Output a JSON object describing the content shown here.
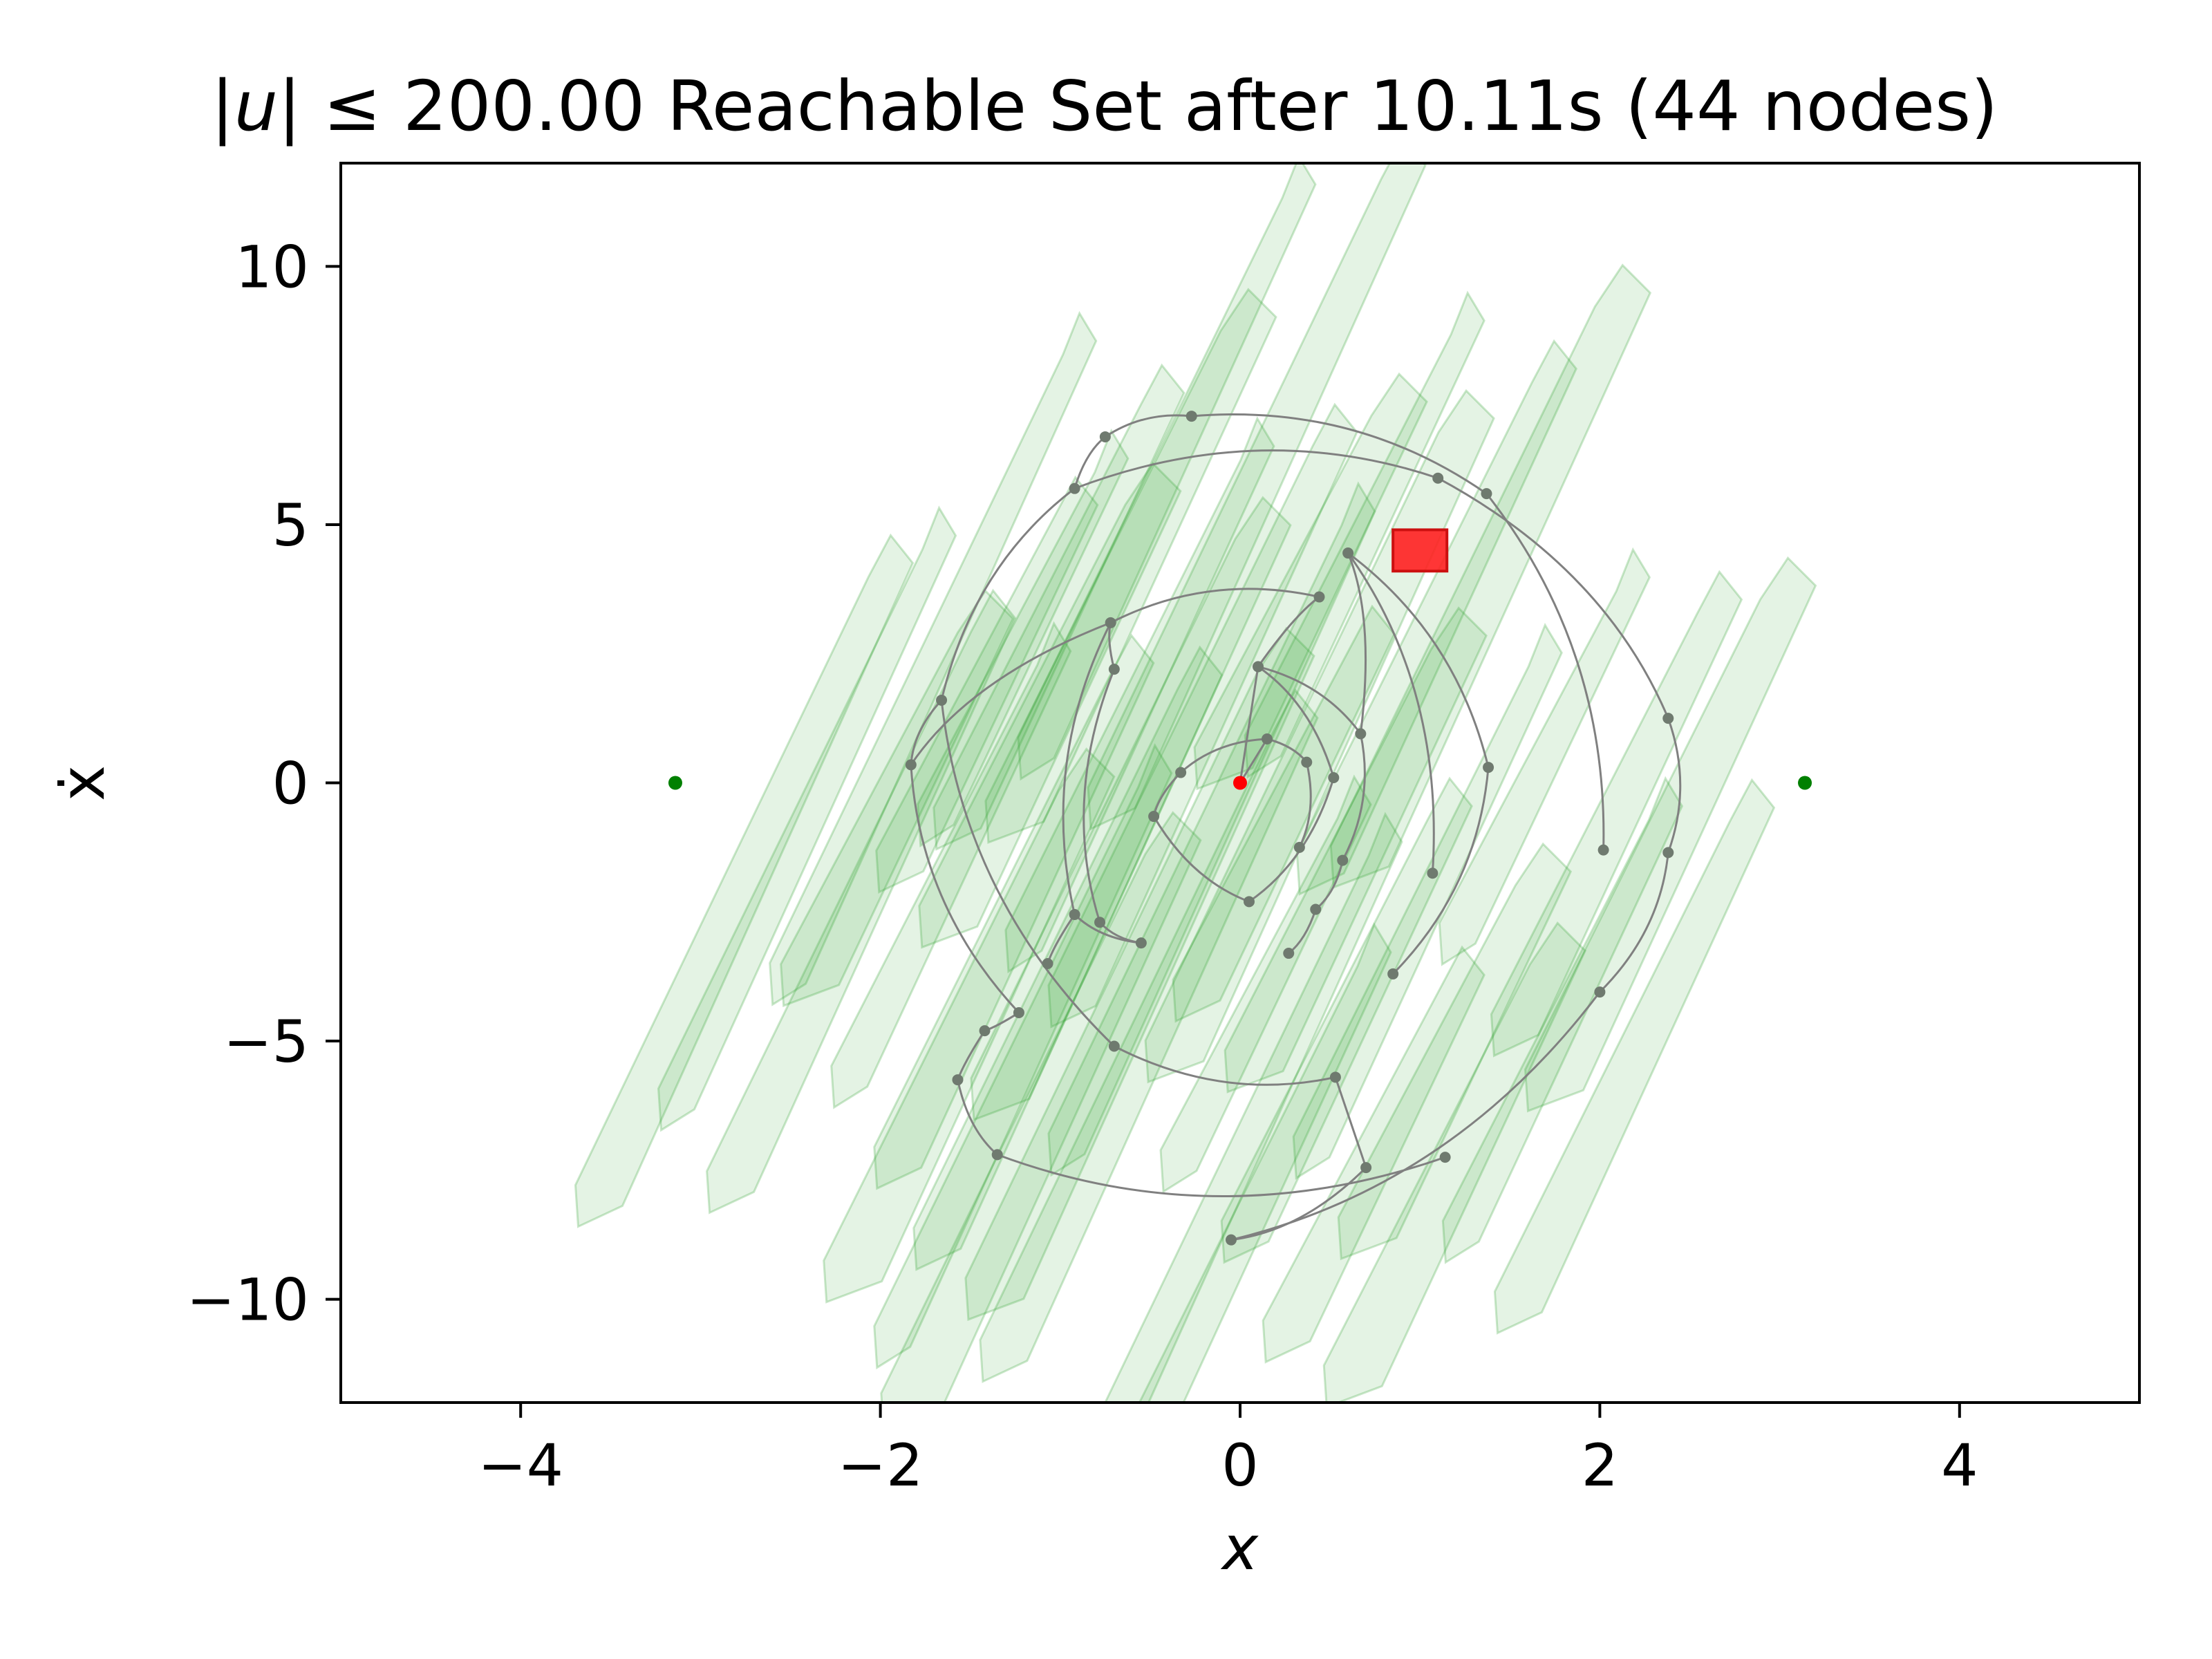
{
  "chart_data": {
    "type": "scatter",
    "title": "|u| ≤ 200.00 Reachable Set after 10.11s (44 nodes)",
    "title_parts": {
      "bar_left": "|",
      "u": "u",
      "bar_right": "|",
      "rest": " ≤ 200.00 Reachable Set after 10.11s (44 nodes)"
    },
    "xlabel": "x",
    "ylabel": "ẋ",
    "xlim": [
      -5,
      5
    ],
    "ylim": [
      -12,
      12
    ],
    "x_ticks": [
      -4,
      -2,
      0,
      2,
      4
    ],
    "x_tick_labels": [
      "−4",
      "−2",
      "0",
      "2",
      "4"
    ],
    "y_ticks": [
      -10,
      -5,
      0,
      5,
      10
    ],
    "y_tick_labels": [
      "−10",
      "−5",
      "0",
      "5",
      "10"
    ],
    "grid": false,
    "colors": {
      "trajectory": "#808080",
      "node": "#6f7a6f",
      "reachable_fill": "#2ca02c",
      "start": "#ff0000",
      "goal_points": "#008000",
      "goal_region": "#ff2020"
    },
    "start_point": {
      "x": 0.0,
      "y": 0.0
    },
    "goal_points": [
      {
        "x": -3.14,
        "y": 0.0
      },
      {
        "x": 3.14,
        "y": 0.0
      }
    ],
    "goal_region": {
      "x": [
        0.85,
        1.15
      ],
      "y": [
        4.1,
        4.9
      ]
    },
    "nodes": [
      {
        "x": 0.0,
        "y": 0.0
      },
      {
        "x": 0.15,
        "y": 0.85
      },
      {
        "x": 0.37,
        "y": 0.4
      },
      {
        "x": 0.33,
        "y": -1.25
      },
      {
        "x": -0.33,
        "y": 0.2
      },
      {
        "x": -0.48,
        "y": -0.65
      },
      {
        "x": 0.05,
        "y": -2.3
      },
      {
        "x": 0.1,
        "y": 2.25
      },
      {
        "x": 0.67,
        "y": 0.95
      },
      {
        "x": 0.57,
        "y": -1.5
      },
      {
        "x": 0.52,
        "y": 0.1
      },
      {
        "x": 0.44,
        "y": 3.6
      },
      {
        "x": -0.72,
        "y": 3.1
      },
      {
        "x": -0.7,
        "y": 2.2
      },
      {
        "x": 0.6,
        "y": 4.45
      },
      {
        "x": 1.07,
        "y": -1.75
      },
      {
        "x": 0.42,
        "y": -2.45
      },
      {
        "x": 0.27,
        "y": -3.3
      },
      {
        "x": -0.78,
        "y": -2.7
      },
      {
        "x": -0.55,
        "y": -3.1
      },
      {
        "x": -0.92,
        "y": -2.55
      },
      {
        "x": 1.38,
        "y": 0.3
      },
      {
        "x": 0.85,
        "y": -3.7
      },
      {
        "x": -1.07,
        "y": -3.5
      },
      {
        "x": -1.83,
        "y": 0.35
      },
      {
        "x": -1.66,
        "y": 1.6
      },
      {
        "x": -0.92,
        "y": 5.7
      },
      {
        "x": -0.75,
        "y": 6.7
      },
      {
        "x": -0.27,
        "y": 7.1
      },
      {
        "x": 1.1,
        "y": 5.9
      },
      {
        "x": 1.37,
        "y": 5.6
      },
      {
        "x": 2.38,
        "y": 1.25
      },
      {
        "x": 2.02,
        "y": -1.3
      },
      {
        "x": 2.38,
        "y": -1.35
      },
      {
        "x": -1.23,
        "y": -4.45
      },
      {
        "x": -1.42,
        "y": -4.8
      },
      {
        "x": -0.7,
        "y": -5.1
      },
      {
        "x": 0.53,
        "y": -5.7
      },
      {
        "x": 2.0,
        "y": -4.05
      },
      {
        "x": -1.57,
        "y": -5.75
      },
      {
        "x": -1.35,
        "y": -7.2
      },
      {
        "x": 0.7,
        "y": -7.45
      },
      {
        "x": 1.14,
        "y": -7.25
      },
      {
        "x": -0.05,
        "y": -8.85
      }
    ],
    "edges": [
      [
        0,
        1
      ],
      [
        1,
        2
      ],
      [
        2,
        3
      ],
      [
        1,
        4
      ],
      [
        4,
        5
      ],
      [
        5,
        6
      ],
      [
        0,
        7
      ],
      [
        7,
        8
      ],
      [
        8,
        9
      ],
      [
        7,
        10
      ],
      [
        10,
        6
      ],
      [
        7,
        11
      ],
      [
        11,
        12
      ],
      [
        12,
        13
      ],
      [
        8,
        14
      ],
      [
        14,
        15
      ],
      [
        9,
        16
      ],
      [
        16,
        17
      ],
      [
        13,
        18
      ],
      [
        18,
        19
      ],
      [
        12,
        20
      ],
      [
        20,
        19
      ],
      [
        14,
        21
      ],
      [
        21,
        22
      ],
      [
        20,
        23
      ],
      [
        12,
        24
      ],
      [
        24,
        25
      ],
      [
        25,
        26
      ],
      [
        26,
        27
      ],
      [
        27,
        28
      ],
      [
        26,
        29
      ],
      [
        28,
        30
      ],
      [
        29,
        31
      ],
      [
        30,
        32
      ],
      [
        31,
        33
      ],
      [
        24,
        34
      ],
      [
        34,
        35
      ],
      [
        25,
        36
      ],
      [
        36,
        37
      ],
      [
        33,
        38
      ],
      [
        35,
        39
      ],
      [
        39,
        40
      ],
      [
        37,
        41
      ],
      [
        40,
        42
      ],
      [
        38,
        43
      ],
      [
        41,
        43
      ]
    ],
    "reachable_sets": [
      {
        "x": -1.2,
        "y": 2.8
      },
      {
        "x": -1.0,
        "y": 3.4
      },
      {
        "x": -0.6,
        "y": 4.2
      },
      {
        "x": -0.4,
        "y": 6.1
      },
      {
        "x": 0.1,
        "y": 5.8
      },
      {
        "x": 0.4,
        "y": 3.9
      },
      {
        "x": 0.7,
        "y": 4.8
      },
      {
        "x": 1.1,
        "y": 3.2
      },
      {
        "x": 1.4,
        "y": 4.0
      },
      {
        "x": -1.7,
        "y": 2.4
      },
      {
        "x": -1.4,
        "y": 1.9
      },
      {
        "x": -1.05,
        "y": 1.5
      },
      {
        "x": -0.55,
        "y": 1.7
      },
      {
        "x": -0.2,
        "y": 1.3
      },
      {
        "x": 0.45,
        "y": 0.9
      },
      {
        "x": 1.7,
        "y": 0.5
      },
      {
        "x": 2.1,
        "y": -0.6
      },
      {
        "x": 2.4,
        "y": -1.0
      },
      {
        "x": -2.4,
        "y": -0.7
      },
      {
        "x": -2.75,
        "y": -1.9
      },
      {
        "x": -1.9,
        "y": -0.3
      },
      {
        "x": -1.6,
        "y": -1.6
      },
      {
        "x": -1.25,
        "y": -2.5
      },
      {
        "x": -0.6,
        "y": -0.5
      },
      {
        "x": -0.15,
        "y": -0.9
      },
      {
        "x": 0.25,
        "y": -0.6
      },
      {
        "x": 0.65,
        "y": -1.3
      },
      {
        "x": 1.05,
        "y": -2.3
      },
      {
        "x": -0.95,
        "y": -3.4
      },
      {
        "x": -0.55,
        "y": -3.7
      },
      {
        "x": 0.15,
        "y": -3.9
      },
      {
        "x": 0.6,
        "y": -4.6
      },
      {
        "x": -1.5,
        "y": -4.7
      },
      {
        "x": -1.2,
        "y": -5.3
      },
      {
        "x": -0.5,
        "y": -4.9
      },
      {
        "x": 1.2,
        "y": -5.2
      },
      {
        "x": 1.8,
        "y": -4.6
      },
      {
        "x": 2.2,
        "y": -5.3
      },
      {
        "x": -1.1,
        "y": -6.6
      },
      {
        "x": 0.0,
        "y": -7.3
      },
      {
        "x": 0.75,
        "y": -7.2
      },
      {
        "x": 1.2,
        "y": -7.4
      },
      {
        "x": 0.1,
        "y": -8.1
      },
      {
        "x": -2.1,
        "y": -2.3
      }
    ]
  }
}
